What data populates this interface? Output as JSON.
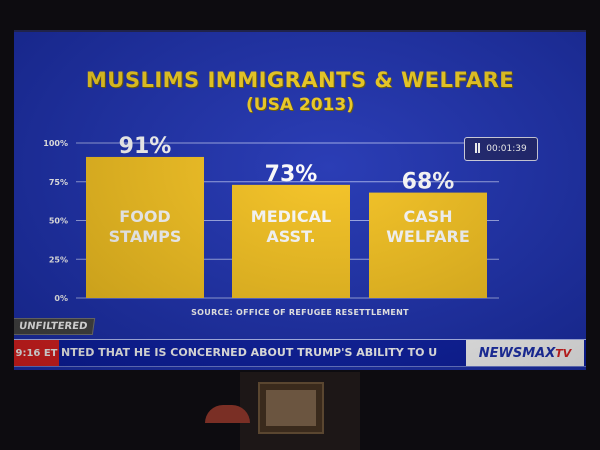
{
  "chart_data": {
    "type": "bar",
    "title": "MUSLIMS IMMIGRANTS & WELFARE",
    "subtitle": "(USA 2013)",
    "categories": [
      "FOOD STAMPS",
      "MEDICAL ASST.",
      "CASH WELFARE"
    ],
    "category_lines": [
      [
        "FOOD",
        "STAMPS"
      ],
      [
        "MEDICAL",
        "ASST."
      ],
      [
        "CASH",
        "WELFARE"
      ]
    ],
    "values": [
      91,
      73,
      68
    ],
    "value_labels": [
      "91%",
      "73%",
      "68%"
    ],
    "yticks": [
      0,
      25,
      50,
      75,
      100
    ],
    "ytick_labels": [
      "0%",
      "25%",
      "50%",
      "75%",
      "100%"
    ],
    "ylim": [
      0,
      100
    ],
    "grid": true,
    "source": "SOURCE: OFFICE OF REFUGEE RESETTLEMENT"
  },
  "colors": {
    "background": "#1b2fb0",
    "bar": "#f6c21c",
    "title": "#f6d21f",
    "grid": "#9aa6e8"
  },
  "overlay": {
    "timer": "00:01:39",
    "pause_icon": "pause-icon",
    "tag": "UNFILTERED",
    "ticker_time": "9:16 ET",
    "ticker_text": "NTED THAT HE IS CONCERNED ABOUT TRUMP'S ABILITY TO U",
    "logo_main": "NEWSMAX",
    "logo_suffix": "TV"
  }
}
